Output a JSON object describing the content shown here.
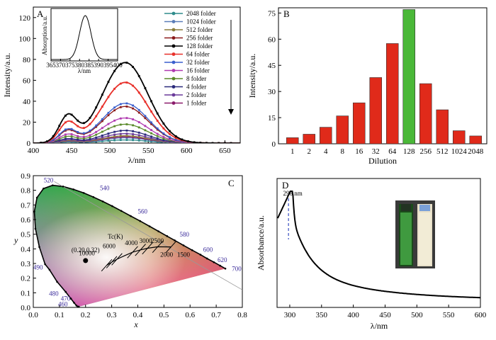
{
  "chart_data": [
    {
      "panel": "A",
      "type": "line",
      "xlabel": "λ/nm",
      "ylabel": "Intensity/a.u.",
      "xlim": [
        400,
        670
      ],
      "ylim": [
        0,
        130
      ],
      "xticks": [
        400,
        450,
        500,
        550,
        600,
        650
      ],
      "yticks": [
        0,
        20,
        40,
        60,
        80,
        100,
        120
      ],
      "legend_position": "top-right",
      "peak_wavelength": 520,
      "secondary_shoulder": 445,
      "series": [
        {
          "name": "2048 folder",
          "color": "#2e8b8b",
          "peak": 3
        },
        {
          "name": "1024 folder",
          "color": "#5b7db8",
          "peak": 5
        },
        {
          "name": "512 folder",
          "color": "#8b7d3a",
          "peak": 7
        },
        {
          "name": "256 folder",
          "color": "#8b1a1a",
          "peak": 35
        },
        {
          "name": "128 folder",
          "color": "#000000",
          "peak": 77
        },
        {
          "name": "64 folder",
          "color": "#e8302a",
          "peak": 58
        },
        {
          "name": "32 folder",
          "color": "#3a5fcd",
          "peak": 38
        },
        {
          "name": "16 folder",
          "color": "#b03ab0",
          "peak": 24
        },
        {
          "name": "8 folder",
          "color": "#5a8a2a",
          "peak": 18
        },
        {
          "name": "4 folder",
          "color": "#2a2a7a",
          "peak": 12
        },
        {
          "name": "2 folder",
          "color": "#6a3a9a",
          "peak": 9
        },
        {
          "name": "1 folder",
          "color": "#8a1a6a",
          "peak": 6
        }
      ],
      "inset": {
        "xlabel": "λ/nm",
        "ylabel": "Absorption/a.u.",
        "xlim": [
          365,
          400
        ],
        "xticks": [
          "365",
          "370",
          "375",
          "380",
          "385",
          "390",
          "395",
          "400"
        ],
        "peak": 383
      }
    },
    {
      "panel": "B",
      "type": "bar",
      "xlabel": "Dilution",
      "ylabel": "Intensity/a.u.",
      "ylim": [
        0,
        78
      ],
      "yticks": [
        0,
        15,
        30,
        45,
        60,
        75
      ],
      "categories": [
        "1",
        "2",
        "4",
        "8",
        "16",
        "32",
        "64",
        "128",
        "256",
        "512",
        "1024",
        "2048"
      ],
      "values": [
        3.5,
        5.5,
        9.5,
        16,
        23.5,
        38,
        57.5,
        77,
        34.5,
        19.5,
        7.5,
        4.5
      ],
      "bar_color": "#e02a1a",
      "highlight_index": 7,
      "highlight_color": "#4ab838"
    },
    {
      "panel": "C",
      "type": "scatter",
      "xlabel": "x",
      "ylabel": "y",
      "xlim": [
        0,
        0.8
      ],
      "ylim": [
        0,
        0.9
      ],
      "xticks": [
        "0.0",
        "0.1",
        "0.2",
        "0.3",
        "0.4",
        "0.5",
        "0.6",
        "0.7",
        "0.8"
      ],
      "yticks": [
        "0.0",
        "0.1",
        "0.2",
        "0.3",
        "0.4",
        "0.5",
        "0.6",
        "0.7",
        "0.8",
        "0.9"
      ],
      "point": {
        "x": 0.2,
        "y": 0.32,
        "label": "(0.20,0.32)"
      },
      "planck_label": "Tc(K)",
      "cct_labels": [
        "10000",
        "6000",
        "4000",
        "3000",
        "2500",
        "2000",
        "1500"
      ],
      "wavelength_labels": [
        "460",
        "470",
        "480",
        "490",
        "520",
        "540",
        "560",
        "580",
        "600",
        "620",
        "700"
      ]
    },
    {
      "panel": "D",
      "type": "line",
      "xlabel": "λ/nm",
      "ylabel": "Absorbance/a.u.",
      "xlim": [
        280,
        600
      ],
      "xticks": [
        300,
        350,
        400,
        450,
        500,
        550,
        600
      ],
      "peak_label": "298 nm",
      "peak_x": 298
    }
  ]
}
